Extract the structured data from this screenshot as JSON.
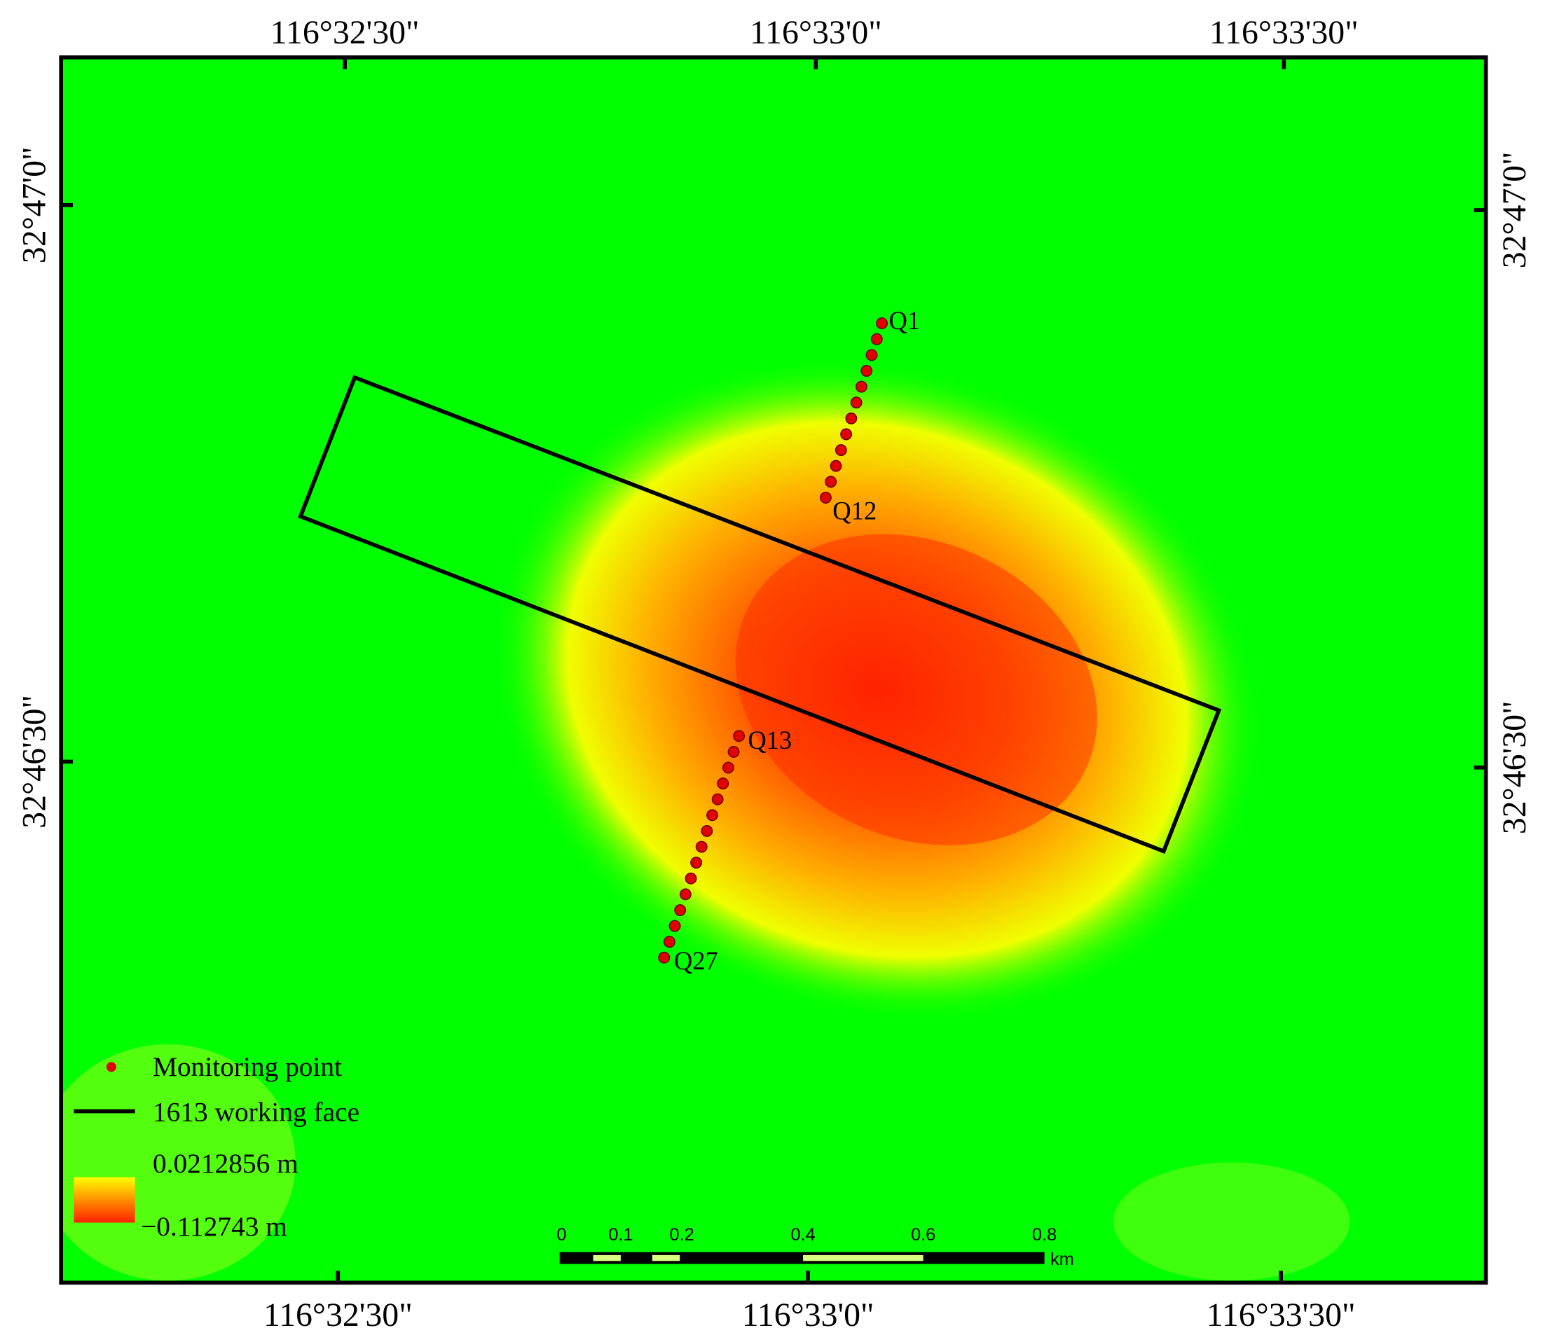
{
  "map": {
    "top_labels": [
      "116°32'30\"",
      "116°33'0\"",
      "116°33'30\""
    ],
    "bottom_labels": [
      "116°32'30\"",
      "116°33'0\"",
      "116°33'30\""
    ],
    "left_labels": [
      "32°47'0\"",
      "32°46'30\""
    ],
    "right_labels": [
      "32°47'0\"",
      "32°46'30\""
    ],
    "point_labels": [
      "Q1",
      "Q12",
      "Q13",
      "Q27"
    ],
    "legend": {
      "monitoring_point": "Monitoring point",
      "working_face": "1613 working face",
      "high": "0.0212856 m",
      "low": "−0.112743 m"
    },
    "scale_bar": {
      "labels": [
        "0",
        "0.1",
        "0.2",
        "0.4",
        "0.6",
        "0.8"
      ],
      "unit": "km"
    }
  }
}
